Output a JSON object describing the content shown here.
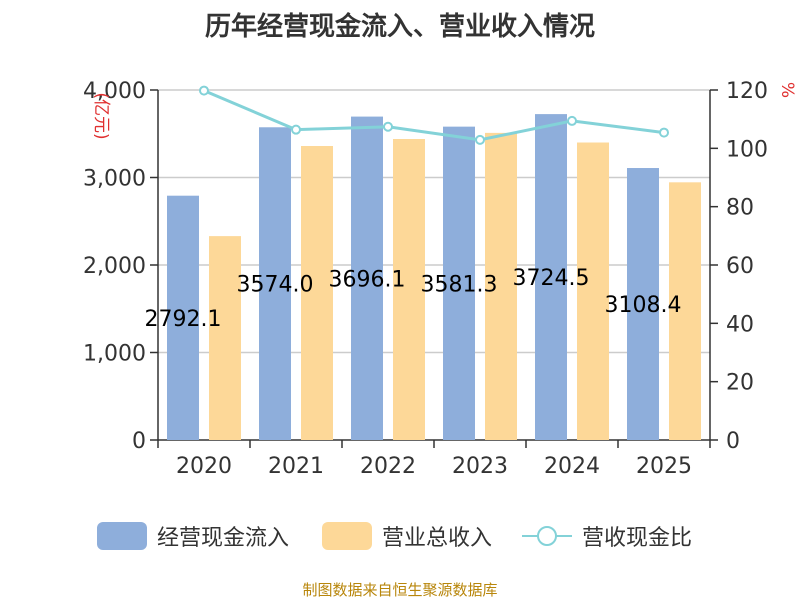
{
  "chart_data": {
    "type": "bar",
    "title": "历年经营现金流入、营业收入情况",
    "categories": [
      "2020",
      "2021",
      "2022",
      "2023",
      "2024",
      "2025"
    ],
    "series": [
      {
        "name": "经营现金流入",
        "type": "bar",
        "axis": "left",
        "color": "#8eaedb",
        "values": [
          2792.1,
          3574.0,
          3696.1,
          3581.3,
          3724.5,
          3108.4
        ]
      },
      {
        "name": "营业总收入",
        "type": "bar",
        "axis": "left",
        "color": "#fdd898",
        "values": [
          2330,
          3360,
          3440,
          3510,
          3400,
          2945
        ]
      },
      {
        "name": "营收现金比",
        "type": "line",
        "axis": "right",
        "color": "#83d2d8",
        "values": [
          119.8,
          106.4,
          107.4,
          102.9,
          109.4,
          105.4
        ]
      }
    ],
    "data_labels": [
      "2792.1",
      "3574.0",
      "3696.1",
      "3581.3",
      "3724.5",
      "3108.4"
    ],
    "y_left": {
      "unit": "(亿元)",
      "ylim": [
        0,
        4000
      ],
      "ticks": [
        "0",
        "1,000",
        "2,000",
        "3,000",
        "4,000"
      ],
      "tick_values": [
        0,
        1000,
        2000,
        3000,
        4000
      ]
    },
    "y_right": {
      "unit": "%",
      "ylim": [
        0,
        120
      ],
      "ticks": [
        "0",
        "20",
        "40",
        "60",
        "80",
        "100",
        "120"
      ],
      "tick_values": [
        0,
        20,
        40,
        60,
        80,
        100,
        120
      ]
    },
    "grid": true,
    "legend_position": "bottom"
  },
  "legend": [
    {
      "label": "经营现金流入",
      "kind": "bar",
      "color": "#8eaedb"
    },
    {
      "label": "营业总收入",
      "kind": "bar",
      "color": "#fdd898"
    },
    {
      "label": "营收现金比",
      "kind": "line",
      "color": "#83d2d8"
    }
  ],
  "source": "制图数据来自恒生聚源数据库"
}
